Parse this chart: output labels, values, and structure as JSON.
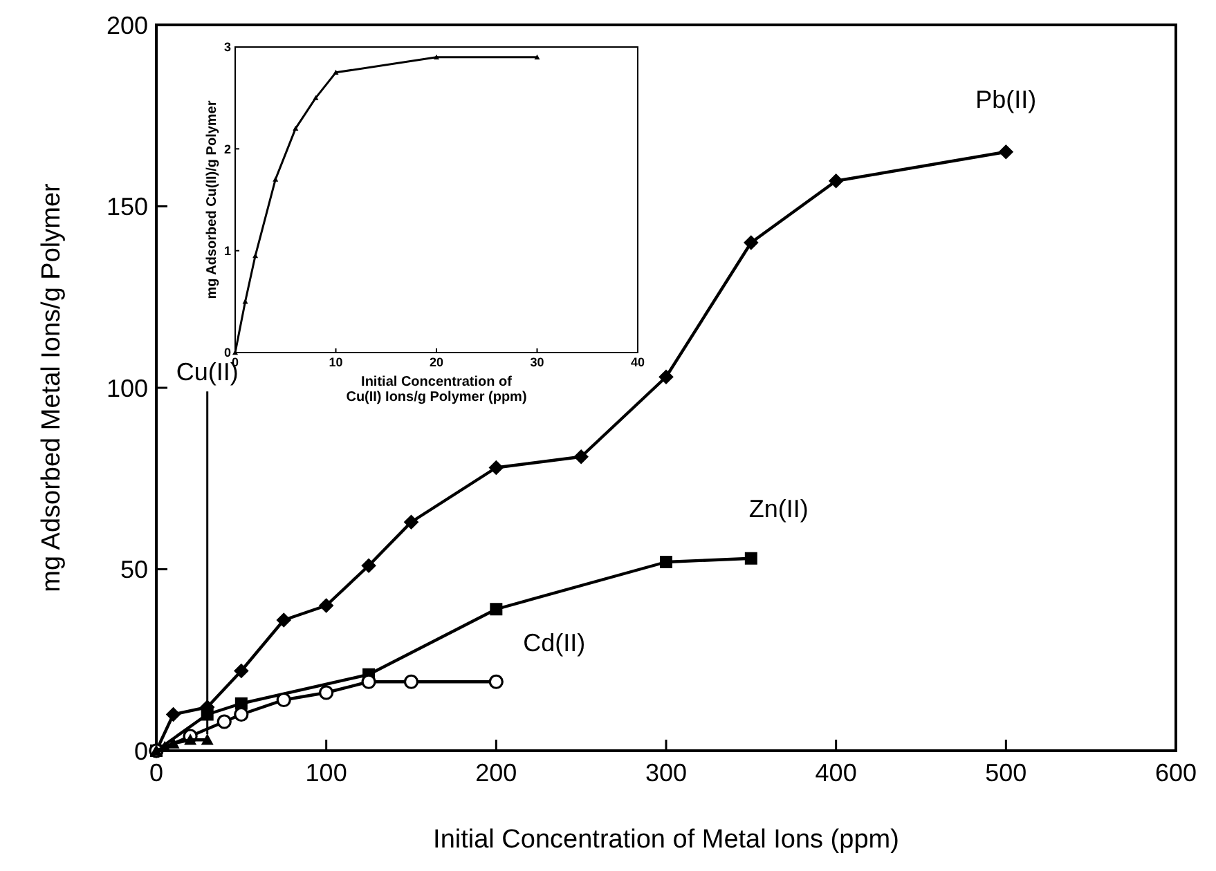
{
  "chart_data": [
    {
      "type": "line",
      "xlabel": "Initial Concentration of Metal Ions (ppm)",
      "ylabel": "mg Adsorbed Metal Ions/g Polymer",
      "xlim": [
        0,
        600
      ],
      "xticks": [
        0,
        100,
        200,
        300,
        400,
        500,
        600
      ],
      "ylim": [
        0,
        200
      ],
      "yticks": [
        0,
        50,
        100,
        150,
        200
      ],
      "series": [
        {
          "name": "Pb(II)",
          "color": "#000000",
          "marker": "diamond",
          "x": [
            0,
            10,
            30,
            50,
            75,
            100,
            125,
            150,
            200,
            250,
            300,
            350,
            400,
            500
          ],
          "values": [
            0,
            10,
            12,
            22,
            36,
            40,
            51,
            63,
            78,
            81,
            103,
            140,
            157,
            165
          ]
        },
        {
          "name": "Zn(II)",
          "color": "#000000",
          "marker": "square",
          "x": [
            0,
            30,
            50,
            125,
            200,
            300,
            350
          ],
          "values": [
            0,
            10,
            13,
            21,
            39,
            52,
            53
          ]
        },
        {
          "name": "Cd(II)",
          "color": "#000000",
          "marker": "circle",
          "x": [
            0,
            20,
            40,
            50,
            75,
            100,
            125,
            150,
            200
          ],
          "values": [
            0,
            4,
            8,
            10,
            14,
            16,
            19,
            19,
            19
          ]
        },
        {
          "name": "Cu(II)",
          "color": "#000000",
          "marker": "triangle",
          "x": [
            0,
            5,
            10,
            20,
            30
          ],
          "values": [
            0,
            1,
            2,
            3,
            3
          ]
        }
      ]
    },
    {
      "type": "line",
      "xlabel": "Initial Concentration of Cu(II) Ions/g Polymer (ppm)",
      "ylabel": "mg Adsorbed Cu(II)/g Polymer",
      "xlim": [
        0,
        40
      ],
      "xticks": [
        0,
        10,
        20,
        30,
        40
      ],
      "ylim": [
        0,
        3
      ],
      "yticks": [
        0,
        1,
        2,
        3
      ],
      "series": [
        {
          "color": "#000000",
          "marker": "triangle",
          "x": [
            0,
            1,
            2,
            4,
            6,
            8,
            10,
            20,
            30
          ],
          "values": [
            0,
            0.5,
            0.95,
            1.7,
            2.2,
            2.5,
            2.75,
            2.9,
            2.9
          ]
        }
      ]
    }
  ]
}
